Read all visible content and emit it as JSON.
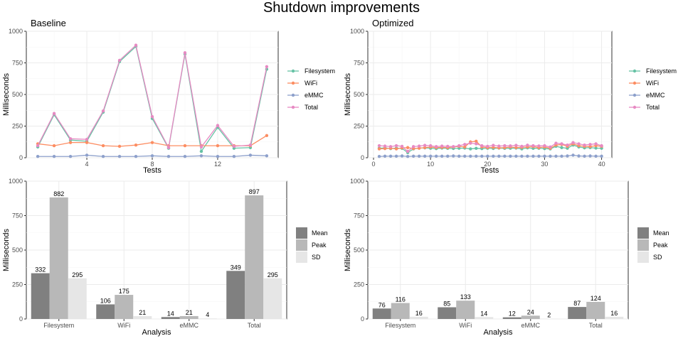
{
  "title": "Shutdown improvements",
  "colors": {
    "Filesystem": "#66c2a5",
    "WiFi": "#fc8d62",
    "eMMC": "#8da0cb",
    "Total": "#e78ac3",
    "Mean": "#808080",
    "Peak": "#b8b8b8",
    "SD": "#e6e6e6"
  },
  "chart_data": [
    {
      "type": "line",
      "title": "Baseline",
      "xlabel": "Tests",
      "ylabel": "Milliseconds",
      "xlim": [
        0.3,
        15.7
      ],
      "ylim": [
        0,
        1000
      ],
      "xticks": [
        4,
        8,
        12
      ],
      "yticks": [
        0,
        250,
        500,
        750,
        1000
      ],
      "legend": "right",
      "grid": true,
      "x": [
        1,
        2,
        3,
        4,
        5,
        6,
        7,
        8,
        9,
        10,
        11,
        12,
        13,
        14,
        15
      ],
      "series": [
        {
          "name": "Filesystem",
          "values": [
            85,
            340,
            140,
            130,
            360,
            760,
            880,
            310,
            75,
            820,
            50,
            240,
            75,
            80,
            700
          ]
        },
        {
          "name": "WiFi",
          "values": [
            110,
            95,
            120,
            120,
            95,
            90,
            100,
            120,
            95,
            95,
            95,
            95,
            95,
            95,
            175
          ]
        },
        {
          "name": "eMMC",
          "values": [
            10,
            10,
            10,
            20,
            10,
            10,
            10,
            15,
            10,
            10,
            15,
            10,
            10,
            20,
            15
          ]
        },
        {
          "name": "Total",
          "values": [
            95,
            350,
            150,
            145,
            370,
            770,
            890,
            325,
            80,
            830,
            85,
            255,
            90,
            100,
            720
          ]
        }
      ]
    },
    {
      "type": "line",
      "title": "Optimized",
      "xlabel": "Tests",
      "ylabel": "Milliseconds",
      "xlim": [
        -1,
        41.8
      ],
      "ylim": [
        0,
        1000
      ],
      "xticks": [
        0,
        10,
        20,
        30,
        40
      ],
      "yticks": [
        0,
        250,
        500,
        750,
        1000
      ],
      "legend": "right",
      "grid": true,
      "x": [
        1,
        2,
        3,
        4,
        5,
        6,
        7,
        8,
        9,
        10,
        11,
        12,
        13,
        14,
        15,
        16,
        17,
        18,
        19,
        20,
        21,
        22,
        23,
        24,
        25,
        26,
        27,
        28,
        29,
        30,
        31,
        32,
        33,
        34,
        35,
        36,
        37,
        38,
        39,
        40
      ],
      "series": [
        {
          "name": "Filesystem",
          "values": [
            75,
            78,
            72,
            76,
            74,
            40,
            70,
            76,
            78,
            75,
            72,
            76,
            74,
            73,
            75,
            76,
            70,
            74,
            72,
            75,
            73,
            76,
            74,
            75,
            76,
            70,
            78,
            74,
            75,
            72,
            70,
            90,
            80,
            75,
            100,
            85,
            78,
            80,
            76,
            75
          ]
        },
        {
          "name": "WiFi",
          "values": [
            70,
            72,
            75,
            70,
            78,
            80,
            72,
            75,
            80,
            85,
            80,
            82,
            80,
            85,
            90,
            85,
            125,
            130,
            85,
            80,
            82,
            78,
            80,
            85,
            80,
            82,
            85,
            88,
            80,
            85,
            75,
            100,
            105,
            90,
            110,
            95,
            90,
            88,
            95,
            90
          ]
        },
        {
          "name": "eMMC",
          "values": [
            10,
            12,
            12,
            12,
            14,
            10,
            12,
            12,
            12,
            12,
            12,
            12,
            12,
            14,
            12,
            12,
            12,
            12,
            12,
            12,
            12,
            12,
            12,
            12,
            12,
            12,
            12,
            12,
            12,
            12,
            12,
            12,
            12,
            14,
            20,
            14,
            12,
            14,
            12,
            12
          ]
        },
        {
          "name": "Total",
          "values": [
            95,
            92,
            88,
            95,
            90,
            50,
            88,
            92,
            98,
            95,
            88,
            92,
            90,
            88,
            95,
            105,
            115,
            110,
            95,
            90,
            98,
            92,
            95,
            94,
            98,
            90,
            99,
            95,
            93,
            95,
            85,
            115,
            110,
            100,
            120,
            110,
            100,
            105,
            110,
            95
          ]
        }
      ]
    },
    {
      "type": "bar",
      "xlabel": "Analysis",
      "ylabel": "Milliseconds",
      "ylim": [
        0,
        1000
      ],
      "yticks": [
        0,
        250,
        500,
        750,
        1000
      ],
      "legend": "right",
      "grid": true,
      "categories": [
        "Filesystem",
        "WiFi",
        "eMMC",
        "Total"
      ],
      "series": [
        {
          "name": "Mean",
          "values": [
            332,
            106,
            14,
            349
          ]
        },
        {
          "name": "Peak",
          "values": [
            882,
            175,
            21,
            897
          ]
        },
        {
          "name": "SD",
          "values": [
            295,
            21,
            4,
            295
          ]
        }
      ]
    },
    {
      "type": "bar",
      "xlabel": "Analysis",
      "ylabel": "Milliseconds",
      "ylim": [
        0,
        1000
      ],
      "yticks": [
        0,
        250,
        500,
        750,
        1000
      ],
      "legend": "right",
      "grid": true,
      "categories": [
        "Filesystem",
        "WiFi",
        "eMMC",
        "Total"
      ],
      "series": [
        {
          "name": "Mean",
          "values": [
            76,
            85,
            12,
            87
          ]
        },
        {
          "name": "Peak",
          "values": [
            116,
            133,
            24,
            124
          ]
        },
        {
          "name": "SD",
          "values": [
            16,
            14,
            2,
            16
          ]
        }
      ]
    }
  ]
}
